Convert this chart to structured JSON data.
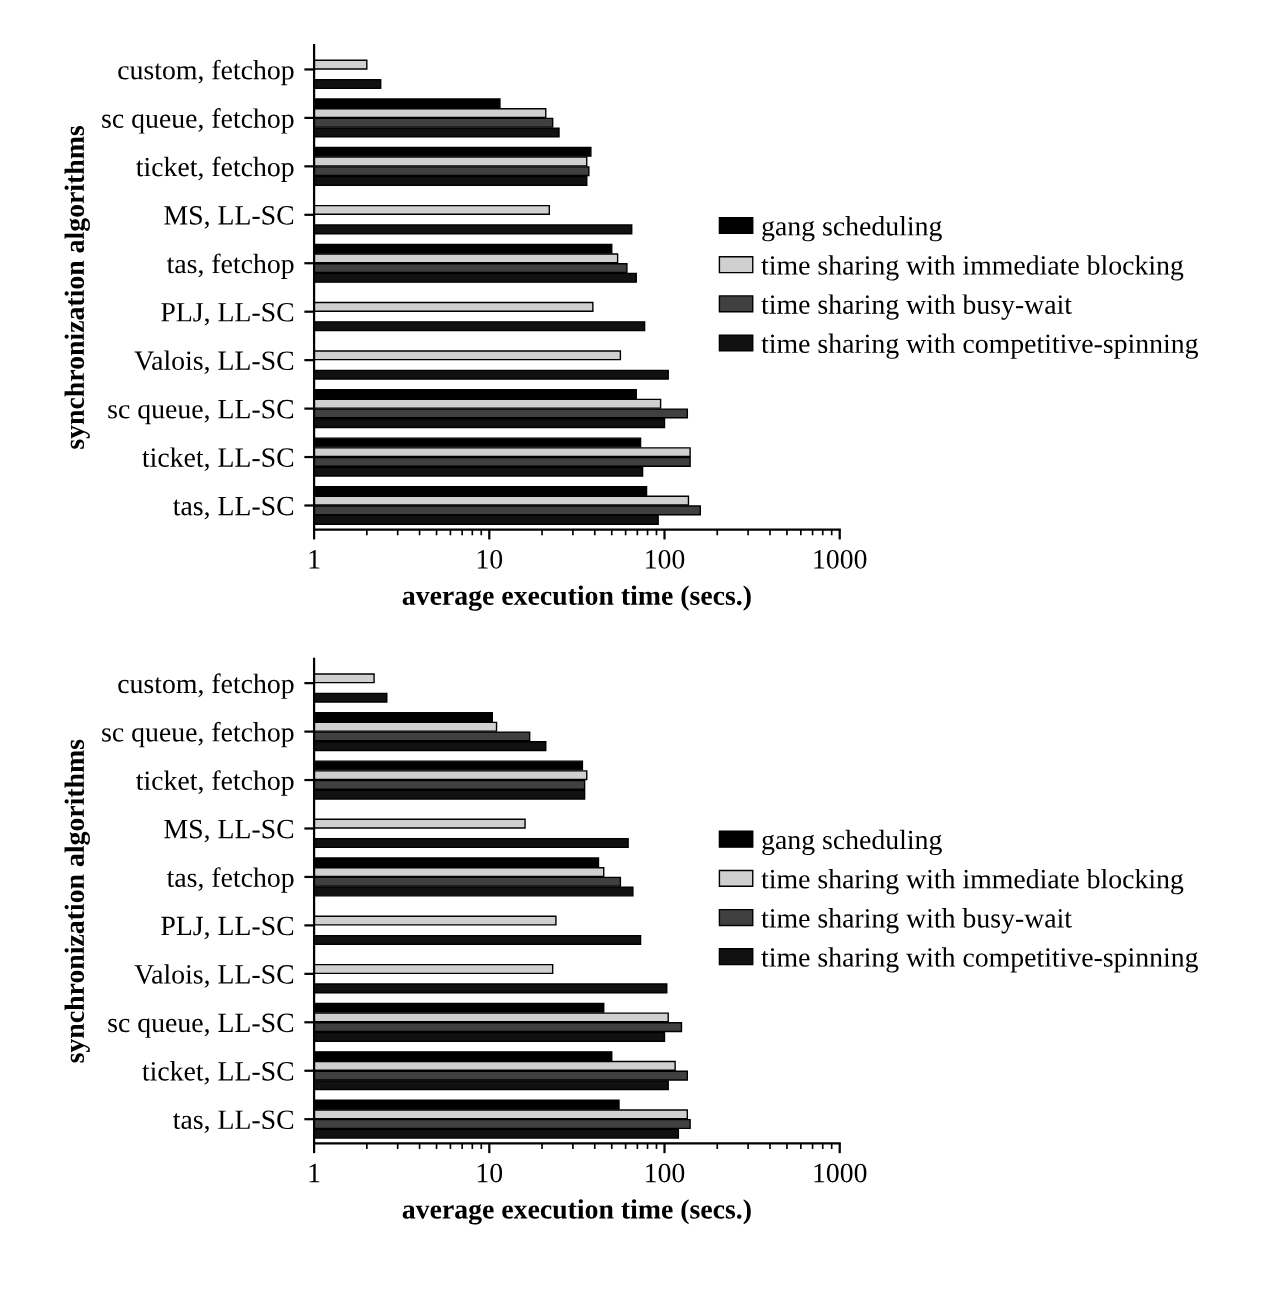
{
  "chart_data": [
    {
      "type": "bar",
      "orientation": "horizontal",
      "log": "x",
      "ylabel": "synchronization algorithms",
      "xlabel": "average execution time (secs.)",
      "xlim": [
        1,
        1000
      ],
      "xticks": [
        1,
        10,
        100,
        1000
      ],
      "grid": false,
      "legend": "right",
      "categories": [
        "custom, fetchop",
        "sc queue, fetchop",
        "ticket, fetchop",
        "MS, LL-SC",
        "tas, fetchop",
        "PLJ, LL-SC",
        "Valois, LL-SC",
        "sc queue, LL-SC",
        "ticket, LL-SC",
        "tas, LL-SC"
      ],
      "series": [
        {
          "name": "gang scheduling",
          "color": "#000000",
          "values": [
            null,
            11.5,
            38,
            null,
            50,
            null,
            null,
            69,
            73,
            79
          ]
        },
        {
          "name": "time sharing with immediate blocking",
          "color": "#d0d0d0",
          "values": [
            2.0,
            21,
            36,
            22,
            54,
            39,
            56,
            95,
            140,
            137
          ]
        },
        {
          "name": "time sharing with busy-wait",
          "color": "#404040",
          "values": [
            null,
            23,
            37,
            null,
            61,
            null,
            null,
            135,
            140,
            160
          ]
        },
        {
          "name": "time sharing with competitive-spinning",
          "color": "#111111",
          "values": [
            2.4,
            25,
            36,
            65,
            69,
            77,
            105,
            100,
            75,
            92
          ]
        }
      ]
    },
    {
      "type": "bar",
      "orientation": "horizontal",
      "log": "x",
      "ylabel": "synchronization algorithms",
      "xlabel": "average execution time (secs.)",
      "xlim": [
        1,
        1000
      ],
      "xticks": [
        1,
        10,
        100,
        1000
      ],
      "grid": false,
      "legend": "right",
      "categories": [
        "custom, fetchop",
        "sc queue, fetchop",
        "ticket, fetchop",
        "MS, LL-SC",
        "tas, fetchop",
        "PLJ, LL-SC",
        "Valois, LL-SC",
        "sc queue, LL-SC",
        "ticket, LL-SC",
        "tas, LL-SC"
      ],
      "series": [
        {
          "name": "gang scheduling",
          "color": "#000000",
          "values": [
            null,
            10.4,
            34,
            null,
            42,
            null,
            null,
            45,
            50,
            55
          ]
        },
        {
          "name": "time sharing with immediate blocking",
          "color": "#d0d0d0",
          "values": [
            2.2,
            11,
            36,
            16,
            45,
            24,
            23,
            105,
            115,
            135
          ]
        },
        {
          "name": "time sharing with busy-wait",
          "color": "#404040",
          "values": [
            null,
            17,
            35,
            null,
            56,
            null,
            null,
            125,
            135,
            140
          ]
        },
        {
          "name": "time sharing with competitive-spinning",
          "color": "#111111",
          "values": [
            2.6,
            21,
            35,
            62,
            66,
            73,
            103,
            100,
            105,
            120
          ]
        }
      ]
    }
  ]
}
